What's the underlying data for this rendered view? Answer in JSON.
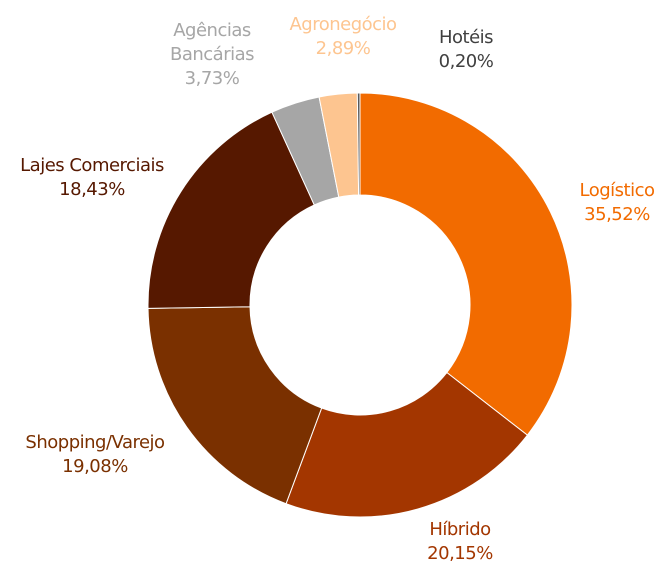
{
  "chart_data": {
    "type": "donut",
    "categories": [
      "Logístico",
      "Híbrido",
      "Shopping/Varejo",
      "Lajes Comerciais",
      "Agências Bancárias",
      "Agronegócio",
      "Hotéis"
    ],
    "values": [
      35.52,
      20.15,
      19.08,
      18.43,
      3.73,
      2.89,
      0.2
    ],
    "value_labels": [
      "35,52%",
      "20,15%",
      "19,08%",
      "18,43%",
      "3,73%",
      "2,89%",
      "0,20%"
    ],
    "colors": [
      "#f26b00",
      "#a33600",
      "#7a3000",
      "#561800",
      "#a6a6a6",
      "#fdc590",
      "#595959"
    ],
    "label_colors": [
      "#f26b00",
      "#a33600",
      "#7a3000",
      "#561800",
      "#a6a6a6",
      "#fdc590",
      "#404040"
    ]
  }
}
